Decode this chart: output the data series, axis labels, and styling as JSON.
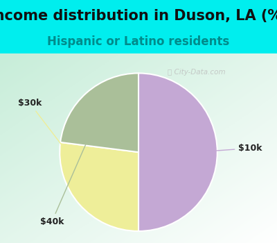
{
  "title": "Income distribution in Duson, LA (%)",
  "subtitle": "Hispanic or Latino residents",
  "title_fontsize": 15,
  "subtitle_fontsize": 12,
  "title_color": "#111111",
  "subtitle_color": "#008B8B",
  "background_color": "#00EEEE",
  "slices": [
    {
      "label": "$10k",
      "value": 50,
      "color": "#C4A8D4"
    },
    {
      "label": "$30k",
      "value": 27,
      "color": "#EEEE99"
    },
    {
      "label": "$40k",
      "value": 23,
      "color": "#AABF99"
    }
  ],
  "label_color": "#222222",
  "label_fontsize": 9,
  "watermark": "City-Data.com",
  "watermark_color": "#BBBBBB",
  "start_angle": 90
}
